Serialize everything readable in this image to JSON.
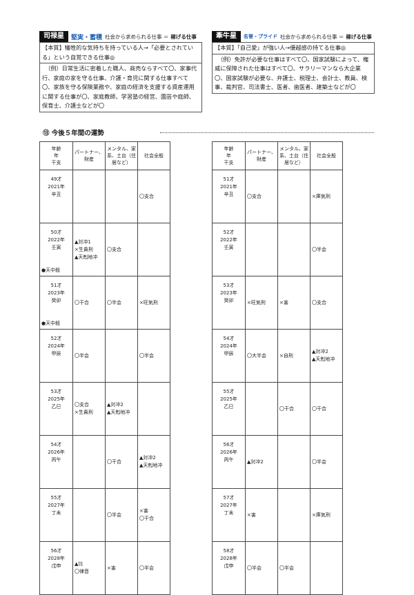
{
  "profiles": [
    {
      "star": "司禄星",
      "trait": "堅実・蓄積",
      "lead": "社会から求められる仕事 ＝",
      "emphasis": "稼げる仕事",
      "essence": "【本質】犠牲的な気持ちを持っている人→「必要とされている」という自覚できる仕事◎",
      "examples": "（例）日常生活に密着した職人、商売ならすべて〇、家事代行、家庭の家を守る仕事、介護・育児に関する仕事すべて〇、家族を守る保険業務や、家庭の経済を支援する資産運用に関する仕事が〇、家庭教師、学習塾の経営、園芸や庭師、保育士、介護士などが〇"
    },
    {
      "star": "牽牛星",
      "trait": "名誉・プライド",
      "lead": "社会から求められる仕事 ＝",
      "emphasis": "稼げる仕事",
      "essence": "【本質】「自己愛」が強い人→優越感の持てる仕事◎",
      "examples": "（例）免許が必要な仕事はすべて〇、国家試験によって、権威に保障された仕事はすべて〇、サラリーマンなら大企業〇、国家試験が必要な、弁護士、税理士、会計士、教員、検事、裁判官、司法書士、医者、歯医者、建築士などが〇"
    }
  ],
  "section_title": "⑬ 今後５年間の運勢",
  "tables": [
    {
      "headers": [
        [
          "年齢",
          "年",
          "干支"
        ],
        [
          "パートナー、財産"
        ],
        [
          "メンタル、家系、土台（住居など）"
        ],
        [
          "社会全般"
        ]
      ],
      "rows": [
        {
          "age": "49才",
          "year": "2021年",
          "eto": "辛丑",
          "note": null,
          "cells": [
            [],
            [],
            [
              "〇支合"
            ]
          ]
        },
        {
          "age": "50才",
          "year": "2022年",
          "eto": "壬寅",
          "note": "●天中殺",
          "cells": [
            [
              "▲対冲1",
              "×生貴刑",
              "▲天剋地冲"
            ],
            [
              "〇支合"
            ],
            []
          ]
        },
        {
          "age": "51才",
          "year": "2023年",
          "eto": "癸卯",
          "note": "●天中殺",
          "cells": [
            [
              "〇干合"
            ],
            [
              "〇半会"
            ],
            [
              "×旺気刑"
            ]
          ]
        },
        {
          "age": "52才",
          "year": "2024年",
          "eto": "甲辰",
          "note": null,
          "cells": [
            [
              "〇半会"
            ],
            [],
            [
              "〇半会"
            ]
          ]
        },
        {
          "age": "53才",
          "year": "2025年",
          "eto": "乙巳",
          "note": null,
          "cells": [
            [
              "〇支合",
              "×生貴刑"
            ],
            [
              "▲対冲2",
              "▲天剋地冲"
            ],
            []
          ]
        },
        {
          "age": "54才",
          "year": "2026年",
          "eto": "丙午",
          "note": null,
          "cells": [
            [],
            [
              "〇干合"
            ],
            [
              "▲対冲2",
              "▲天剋地冲"
            ]
          ]
        },
        {
          "age": "55才",
          "year": "2027年",
          "eto": "丁未",
          "note": null,
          "cells": [
            [],
            [
              "〇半会"
            ],
            [
              "×害",
              "〇干合"
            ]
          ]
        },
        {
          "age": "56才",
          "year": "2028年",
          "eto": "戊申",
          "note": null,
          "cells": [
            [
              "▲比",
              "〇律音"
            ],
            [
              "×害"
            ],
            [
              "〇半会"
            ]
          ]
        }
      ]
    },
    {
      "headers": [
        [
          "年齢",
          "年",
          "干支"
        ],
        [
          "パートナー、財産"
        ],
        [
          "メンタル、家系、土台（住居など）"
        ],
        [
          "社会全般"
        ]
      ],
      "rows": [
        {
          "age": "51才",
          "year": "2021年",
          "eto": "辛丑",
          "note": null,
          "cells": [
            [
              "〇支合"
            ],
            [],
            [
              "×庫気刑"
            ]
          ]
        },
        {
          "age": "52才",
          "year": "2022年",
          "eto": "壬寅",
          "note": null,
          "cells": [
            [],
            [],
            [
              "〇半会"
            ]
          ]
        },
        {
          "age": "53才",
          "year": "2023年",
          "eto": "癸卯",
          "note": null,
          "cells": [
            [
              "×旺気刑"
            ],
            [
              "×害"
            ],
            [
              "〇支合"
            ]
          ]
        },
        {
          "age": "54才",
          "year": "2024年",
          "eto": "甲辰",
          "note": null,
          "cells": [
            [
              "〇大半会"
            ],
            [
              "×自刑"
            ],
            [
              "▲対冲2",
              "▲天剋地冲"
            ]
          ]
        },
        {
          "age": "55才",
          "year": "2025年",
          "eto": "乙巳",
          "note": null,
          "cells": [
            [],
            [
              "〇干合"
            ],
            [
              "〇干合"
            ]
          ]
        },
        {
          "age": "56才",
          "year": "2026年",
          "eto": "丙午",
          "note": null,
          "cells": [
            [
              "▲対冲2"
            ],
            [],
            [
              "〇半会"
            ]
          ]
        },
        {
          "age": "57才",
          "year": "2027年",
          "eto": "丁未",
          "note": null,
          "cells": [
            [
              "×害"
            ],
            [],
            [
              "×庫気刑"
            ]
          ]
        },
        {
          "age": "58才",
          "year": "2028年",
          "eto": "戊申",
          "note": null,
          "cells": [
            [
              "〇半会"
            ],
            [
              "〇半会"
            ],
            []
          ]
        }
      ]
    }
  ]
}
